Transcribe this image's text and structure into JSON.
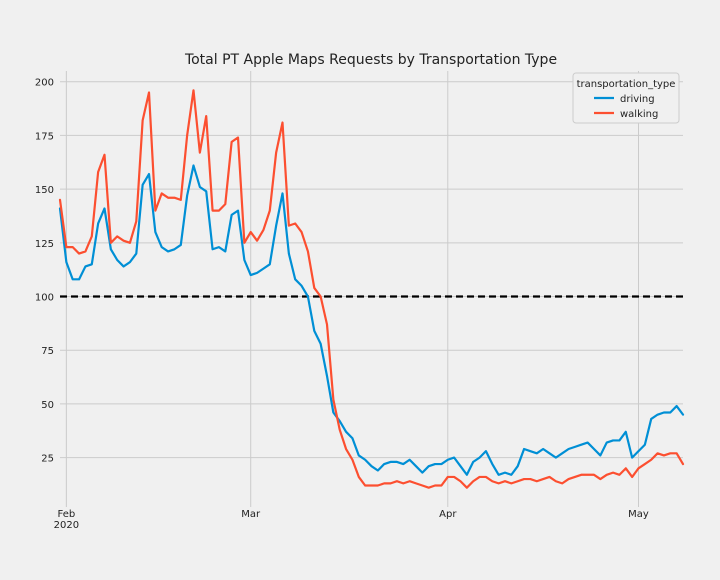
{
  "chart_data": {
    "type": "line",
    "title": "Total PT Apple Maps Requests by Transportation Type",
    "xlabel": "",
    "ylabel": "",
    "x_start": "2020-01-31",
    "ylim": [
      2,
      205
    ],
    "y_ticks": [
      25,
      50,
      75,
      100,
      125,
      150,
      175,
      200
    ],
    "x_ticks": [
      {
        "date": "2020-02-01",
        "label": "Feb",
        "sublabel": "2020"
      },
      {
        "date": "2020-03-01",
        "label": "Mar",
        "sublabel": ""
      },
      {
        "date": "2020-04-01",
        "label": "Apr",
        "sublabel": ""
      },
      {
        "date": "2020-05-01",
        "label": "May",
        "sublabel": ""
      }
    ],
    "grid": true,
    "reference_line": {
      "value": 100,
      "style": "dashed",
      "color": "#000000"
    },
    "legend": {
      "title": "transportation_type",
      "position": "top-right"
    },
    "series": [
      {
        "name": "driving",
        "color": "#008fd5",
        "values": [
          141,
          116,
          108,
          108,
          114,
          115,
          134,
          141,
          122,
          117,
          114,
          116,
          120,
          152,
          157,
          130,
          123,
          121,
          122,
          124,
          147,
          161,
          151,
          149,
          122,
          123,
          121,
          138,
          140,
          117,
          110,
          111,
          113,
          115,
          133,
          148,
          120,
          108,
          105,
          100,
          84,
          78,
          63,
          46,
          42,
          37,
          34,
          26,
          24,
          21,
          19,
          22,
          23,
          23,
          22,
          24,
          21,
          18,
          21,
          22,
          22,
          24,
          25,
          21,
          17,
          23,
          25,
          28,
          22,
          17,
          18,
          17,
          21,
          29,
          28,
          27,
          29,
          27,
          25,
          27,
          29,
          30,
          31,
          32,
          29,
          26,
          32,
          33,
          33,
          37,
          25,
          28,
          31,
          43,
          45,
          46,
          46,
          49,
          45
        ]
      },
      {
        "name": "walking",
        "color": "#fc4f30",
        "values": [
          145,
          123,
          123,
          120,
          121,
          128,
          158,
          166,
          125,
          128,
          126,
          125,
          135,
          182,
          195,
          140,
          148,
          146,
          146,
          145,
          175,
          196,
          167,
          184,
          140,
          140,
          143,
          172,
          174,
          125,
          130,
          126,
          131,
          140,
          167,
          181,
          133,
          134,
          130,
          121,
          104,
          100,
          87,
          52,
          38,
          29,
          24,
          16,
          12,
          12,
          12,
          13,
          13,
          14,
          13,
          14,
          13,
          12,
          11,
          12,
          12,
          16,
          16,
          14,
          11,
          14,
          16,
          16,
          14,
          13,
          14,
          13,
          14,
          15,
          15,
          14,
          15,
          16,
          14,
          13,
          15,
          16,
          17,
          17,
          17,
          15,
          17,
          18,
          17,
          20,
          16,
          20,
          22,
          24,
          27,
          26,
          27,
          27,
          22
        ]
      }
    ]
  }
}
